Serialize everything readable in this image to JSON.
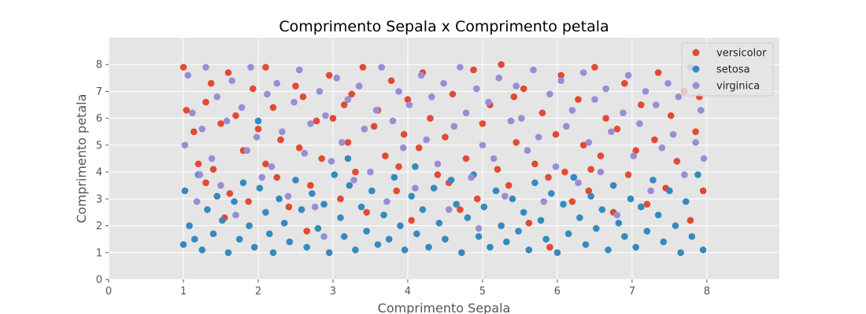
{
  "chart_data": {
    "type": "scatter",
    "title": "Comprimento Sepala x Comprimento petala",
    "xlabel": "Comprimento Sepala",
    "ylabel": "Comprimento petala",
    "xlim": [
      0,
      8.97
    ],
    "ylim": [
      0,
      9.0
    ],
    "x_ticks": [
      0,
      1,
      2,
      3,
      4,
      5,
      6,
      7,
      8
    ],
    "y_ticks": [
      0,
      1,
      2,
      3,
      4,
      5,
      6,
      7,
      8
    ],
    "grid": true,
    "legend_position": "top-right",
    "series": [
      {
        "name": "versicolor",
        "color": "#E24A33",
        "points": [
          [
            1.0,
            7.9
          ],
          [
            1.04,
            6.3
          ],
          [
            1.14,
            5.5
          ],
          [
            1.2,
            4.3
          ],
          [
            1.3,
            6.6
          ],
          [
            1.3,
            3.6
          ],
          [
            1.37,
            7.3
          ],
          [
            1.4,
            4.1
          ],
          [
            1.5,
            5.8
          ],
          [
            1.6,
            7.7
          ],
          [
            1.62,
            3.2
          ],
          [
            1.7,
            6.1
          ],
          [
            1.8,
            4.8
          ],
          [
            1.87,
            2.9
          ],
          [
            1.93,
            7.1
          ],
          [
            2.0,
            5.6
          ],
          [
            2.1,
            4.3
          ],
          [
            2.1,
            7.9
          ],
          [
            2.2,
            6.4
          ],
          [
            2.25,
            3.8
          ],
          [
            2.3,
            5.2
          ],
          [
            2.41,
            2.7
          ],
          [
            2.5,
            7.2
          ],
          [
            2.55,
            4.9
          ],
          [
            2.6,
            6.8
          ],
          [
            2.7,
            3.5
          ],
          [
            2.78,
            5.9
          ],
          [
            2.85,
            4.5
          ],
          [
            2.95,
            7.6
          ],
          [
            3.0,
            6.0
          ],
          [
            3.1,
            3.0
          ],
          [
            3.2,
            5.1
          ],
          [
            3.25,
            6.9
          ],
          [
            3.3,
            4.0
          ],
          [
            3.4,
            7.9
          ],
          [
            3.45,
            2.5
          ],
          [
            3.55,
            5.7
          ],
          [
            3.6,
            6.3
          ],
          [
            3.7,
            4.6
          ],
          [
            3.78,
            7.4
          ],
          [
            3.85,
            3.3
          ],
          [
            3.95,
            5.4
          ],
          [
            4.0,
            6.7
          ],
          [
            4.05,
            2.2
          ],
          [
            4.15,
            4.9
          ],
          [
            4.2,
            7.7
          ],
          [
            4.3,
            6.0
          ],
          [
            4.4,
            3.9
          ],
          [
            4.5,
            5.3
          ],
          [
            4.6,
            6.9
          ],
          [
            4.7,
            2.6
          ],
          [
            4.78,
            4.5
          ],
          [
            4.88,
            7.8
          ],
          [
            4.93,
            3.0
          ],
          [
            5.0,
            5.8
          ],
          [
            5.1,
            6.5
          ],
          [
            5.2,
            4.1
          ],
          [
            5.25,
            8.0
          ],
          [
            5.35,
            3.5
          ],
          [
            5.45,
            5.1
          ],
          [
            5.55,
            7.1
          ],
          [
            5.62,
            2.1
          ],
          [
            5.7,
            4.3
          ],
          [
            5.8,
            6.2
          ],
          [
            5.88,
            3.8
          ],
          [
            5.9,
            1.2
          ],
          [
            5.98,
            5.4
          ],
          [
            6.05,
            7.6
          ],
          [
            6.1,
            4.0
          ],
          [
            6.2,
            2.9
          ],
          [
            6.28,
            6.7
          ],
          [
            6.35,
            5.0
          ],
          [
            6.42,
            3.3
          ],
          [
            6.5,
            7.9
          ],
          [
            6.58,
            4.6
          ],
          [
            6.65,
            6.0
          ],
          [
            6.75,
            2.5
          ],
          [
            6.8,
            5.6
          ],
          [
            6.9,
            7.3
          ],
          [
            6.95,
            3.9
          ],
          [
            7.05,
            4.8
          ],
          [
            7.12,
            6.5
          ],
          [
            7.2,
            2.8
          ],
          [
            7.3,
            5.2
          ],
          [
            7.35,
            7.7
          ],
          [
            7.45,
            3.4
          ],
          [
            7.52,
            6.1
          ],
          [
            7.6,
            4.4
          ],
          [
            7.7,
            7.0
          ],
          [
            7.78,
            2.2
          ],
          [
            7.85,
            5.5
          ],
          [
            7.9,
            6.8
          ],
          [
            7.95,
            3.3
          ],
          [
            1.55,
            2.3
          ],
          [
            2.65,
            1.8
          ],
          [
            3.15,
            6.5
          ],
          [
            3.88,
            4.2
          ],
          [
            4.55,
            3.6
          ],
          [
            5.42,
            6.8
          ],
          [
            6.45,
            4.1
          ]
        ]
      },
      {
        "name": "setosa",
        "color": "#348ABD",
        "points": [
          [
            1.0,
            1.3
          ],
          [
            1.02,
            3.3
          ],
          [
            1.08,
            2.0
          ],
          [
            1.15,
            1.5
          ],
          [
            1.2,
            3.9
          ],
          [
            1.25,
            1.1
          ],
          [
            1.32,
            2.6
          ],
          [
            1.4,
            1.7
          ],
          [
            1.45,
            3.1
          ],
          [
            1.52,
            2.2
          ],
          [
            1.6,
            1.0
          ],
          [
            1.68,
            2.9
          ],
          [
            1.75,
            1.5
          ],
          [
            1.8,
            3.6
          ],
          [
            1.88,
            2.0
          ],
          [
            1.95,
            1.2
          ],
          [
            2.02,
            3.4
          ],
          [
            2.1,
            2.5
          ],
          [
            2.15,
            1.7
          ],
          [
            2.2,
            1.0
          ],
          [
            2.28,
            3.0
          ],
          [
            2.35,
            2.1
          ],
          [
            2.42,
            1.4
          ],
          [
            2.5,
            3.7
          ],
          [
            2.58,
            2.6
          ],
          [
            2.65,
            1.2
          ],
          [
            2.72,
            3.2
          ],
          [
            2.8,
            1.9
          ],
          [
            2.88,
            2.8
          ],
          [
            2.95,
            1.0
          ],
          [
            3.02,
            3.9
          ],
          [
            3.1,
            2.3
          ],
          [
            3.15,
            1.6
          ],
          [
            3.22,
            3.5
          ],
          [
            3.3,
            1.1
          ],
          [
            3.38,
            2.7
          ],
          [
            3.45,
            1.8
          ],
          [
            3.52,
            3.3
          ],
          [
            3.6,
            1.3
          ],
          [
            3.68,
            2.4
          ],
          [
            3.75,
            1.5
          ],
          [
            3.82,
            3.8
          ],
          [
            3.9,
            2.0
          ],
          [
            3.96,
            1.1
          ],
          [
            4.05,
            3.1
          ],
          [
            4.12,
            1.7
          ],
          [
            4.2,
            2.6
          ],
          [
            4.28,
            1.2
          ],
          [
            4.35,
            3.4
          ],
          [
            4.42,
            2.1
          ],
          [
            4.5,
            1.5
          ],
          [
            4.58,
            3.7
          ],
          [
            4.65,
            2.8
          ],
          [
            4.72,
            1.0
          ],
          [
            4.8,
            2.3
          ],
          [
            4.88,
            3.9
          ],
          [
            4.95,
            1.6
          ],
          [
            5.02,
            2.7
          ],
          [
            5.1,
            1.2
          ],
          [
            5.18,
            3.3
          ],
          [
            5.25,
            2.0
          ],
          [
            5.32,
            1.4
          ],
          [
            5.4,
            3.0
          ],
          [
            5.48,
            1.8
          ],
          [
            5.55,
            2.5
          ],
          [
            5.62,
            1.1
          ],
          [
            5.7,
            3.6
          ],
          [
            5.78,
            2.2
          ],
          [
            5.85,
            1.5
          ],
          [
            5.92,
            3.2
          ],
          [
            6.0,
            1.0
          ],
          [
            6.08,
            2.8
          ],
          [
            6.15,
            1.7
          ],
          [
            6.22,
            3.8
          ],
          [
            6.3,
            2.3
          ],
          [
            6.38,
            1.3
          ],
          [
            6.45,
            3.1
          ],
          [
            6.52,
            1.9
          ],
          [
            6.6,
            2.6
          ],
          [
            6.68,
            1.1
          ],
          [
            6.75,
            3.5
          ],
          [
            6.82,
            2.1
          ],
          [
            6.9,
            1.6
          ],
          [
            6.98,
            3.0
          ],
          [
            7.05,
            1.2
          ],
          [
            7.12,
            2.7
          ],
          [
            7.2,
            1.8
          ],
          [
            7.28,
            3.7
          ],
          [
            7.35,
            2.4
          ],
          [
            7.42,
            1.4
          ],
          [
            7.5,
            3.3
          ],
          [
            7.58,
            2.0
          ],
          [
            7.65,
            1.0
          ],
          [
            7.72,
            2.9
          ],
          [
            7.8,
            1.6
          ],
          [
            7.88,
            3.9
          ],
          [
            7.95,
            1.1
          ],
          [
            2.0,
            5.9
          ],
          [
            3.2,
            4.5
          ],
          [
            4.1,
            4.2
          ]
        ]
      },
      {
        "name": "virginica",
        "color": "#988ED5",
        "points": [
          [
            1.02,
            5.0
          ],
          [
            1.06,
            7.6
          ],
          [
            1.12,
            6.2
          ],
          [
            1.18,
            2.9
          ],
          [
            1.25,
            5.6
          ],
          [
            1.3,
            7.9
          ],
          [
            1.38,
            4.5
          ],
          [
            1.45,
            6.8
          ],
          [
            1.5,
            3.5
          ],
          [
            1.58,
            5.9
          ],
          [
            1.65,
            7.4
          ],
          [
            1.7,
            2.4
          ],
          [
            1.78,
            6.4
          ],
          [
            1.85,
            4.8
          ],
          [
            1.9,
            7.9
          ],
          [
            1.98,
            5.3
          ],
          [
            2.05,
            3.8
          ],
          [
            2.12,
            6.9
          ],
          [
            2.18,
            4.2
          ],
          [
            2.25,
            7.3
          ],
          [
            2.32,
            5.5
          ],
          [
            2.4,
            3.1
          ],
          [
            2.48,
            6.6
          ],
          [
            2.55,
            7.8
          ],
          [
            2.62,
            4.7
          ],
          [
            2.7,
            5.8
          ],
          [
            2.76,
            2.7
          ],
          [
            2.82,
            7.0
          ],
          [
            2.9,
            6.1
          ],
          [
            2.98,
            4.4
          ],
          [
            3.05,
            7.5
          ],
          [
            3.12,
            5.1
          ],
          [
            3.2,
            6.7
          ],
          [
            3.28,
            3.7
          ],
          [
            3.35,
            7.2
          ],
          [
            3.42,
            5.6
          ],
          [
            3.5,
            4.0
          ],
          [
            3.58,
            6.3
          ],
          [
            3.65,
            7.9
          ],
          [
            3.72,
            2.9
          ],
          [
            3.8,
            5.9
          ],
          [
            3.88,
            7.0
          ],
          [
            3.94,
            4.9
          ],
          [
            4.02,
            6.5
          ],
          [
            4.1,
            3.4
          ],
          [
            4.18,
            7.6
          ],
          [
            4.25,
            5.2
          ],
          [
            4.32,
            6.8
          ],
          [
            4.4,
            4.3
          ],
          [
            4.48,
            7.3
          ],
          [
            4.55,
            2.6
          ],
          [
            4.62,
            5.7
          ],
          [
            4.7,
            7.9
          ],
          [
            4.78,
            6.2
          ],
          [
            4.85,
            3.8
          ],
          [
            4.92,
            7.1
          ],
          [
            5.0,
            5.0
          ],
          [
            5.08,
            6.6
          ],
          [
            5.15,
            4.5
          ],
          [
            5.22,
            7.5
          ],
          [
            5.3,
            3.1
          ],
          [
            5.38,
            5.9
          ],
          [
            5.45,
            7.2
          ],
          [
            5.52,
            6.0
          ],
          [
            5.6,
            4.8
          ],
          [
            5.68,
            7.8
          ],
          [
            5.75,
            5.3
          ],
          [
            5.82,
            2.9
          ],
          [
            5.9,
            6.9
          ],
          [
            5.98,
            4.2
          ],
          [
            6.05,
            7.4
          ],
          [
            6.12,
            5.7
          ],
          [
            6.2,
            6.3
          ],
          [
            6.28,
            3.6
          ],
          [
            6.35,
            7.7
          ],
          [
            6.42,
            5.1
          ],
          [
            6.5,
            6.7
          ],
          [
            6.58,
            4.0
          ],
          [
            6.65,
            7.1
          ],
          [
            6.72,
            5.5
          ],
          [
            6.8,
            2.4
          ],
          [
            6.88,
            6.2
          ],
          [
            6.95,
            7.6
          ],
          [
            7.02,
            4.6
          ],
          [
            7.1,
            5.8
          ],
          [
            7.18,
            7.0
          ],
          [
            7.25,
            3.3
          ],
          [
            7.32,
            6.5
          ],
          [
            7.4,
            4.9
          ],
          [
            7.48,
            7.3
          ],
          [
            7.55,
            5.4
          ],
          [
            7.62,
            6.8
          ],
          [
            7.7,
            3.9
          ],
          [
            7.78,
            7.9
          ],
          [
            7.85,
            5.1
          ],
          [
            7.92,
            6.3
          ],
          [
            7.96,
            4.5
          ],
          [
            1.22,
            3.9
          ],
          [
            2.88,
            1.6
          ],
          [
            4.95,
            1.9
          ]
        ]
      }
    ]
  }
}
